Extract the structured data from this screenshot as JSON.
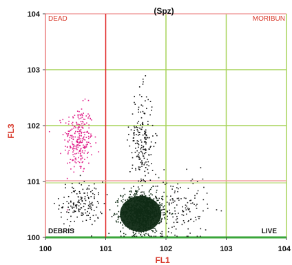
{
  "chart_data": {
    "type": "scatter",
    "title": "(Spz)",
    "xlabel": "FL1",
    "ylabel": "FL3",
    "x_ticks": [
      "100",
      "101",
      "102",
      "103",
      "104"
    ],
    "y_ticks": [
      "100",
      "101",
      "102",
      "103",
      "104"
    ],
    "xlim": [
      0,
      4
    ],
    "ylim": [
      0,
      4
    ],
    "gates": {
      "x": 1.0,
      "y": 1.0
    },
    "quadrant_labels": {
      "top_left": "DEAD",
      "top_right": "MORIBUN",
      "bottom_left": "DEBRIS",
      "bottom_right": "LIVE"
    },
    "grid": true,
    "populations": [
      {
        "label": "DEAD",
        "color": "#e0208a",
        "center": [
          0.55,
          1.75
        ],
        "spread": [
          0.12,
          0.3
        ],
        "count": 260
      },
      {
        "label": "DEBRIS",
        "color": "#111111",
        "center": [
          0.6,
          0.6
        ],
        "spread": [
          0.18,
          0.2
        ],
        "count": 160
      },
      {
        "label": "LIVE",
        "color": "#0f2a14",
        "center": [
          1.6,
          0.45
        ],
        "spread": [
          0.17,
          0.18
        ],
        "count": 900
      },
      {
        "label": "MORIBUN",
        "color": "#111111",
        "center": [
          1.6,
          1.7
        ],
        "spread": [
          0.1,
          0.45
        ],
        "count": 200
      },
      {
        "label": "LIVE",
        "color": "#222222",
        "center": [
          2.2,
          0.5
        ],
        "spread": [
          0.25,
          0.3
        ],
        "count": 160
      }
    ],
    "colors": {
      "axis_frame": "#f0a0a0",
      "grid": "#a7d35a",
      "gate": "#e02020",
      "bottom_axis": "#3aa53a",
      "label_red": "#d83a2c"
    }
  }
}
